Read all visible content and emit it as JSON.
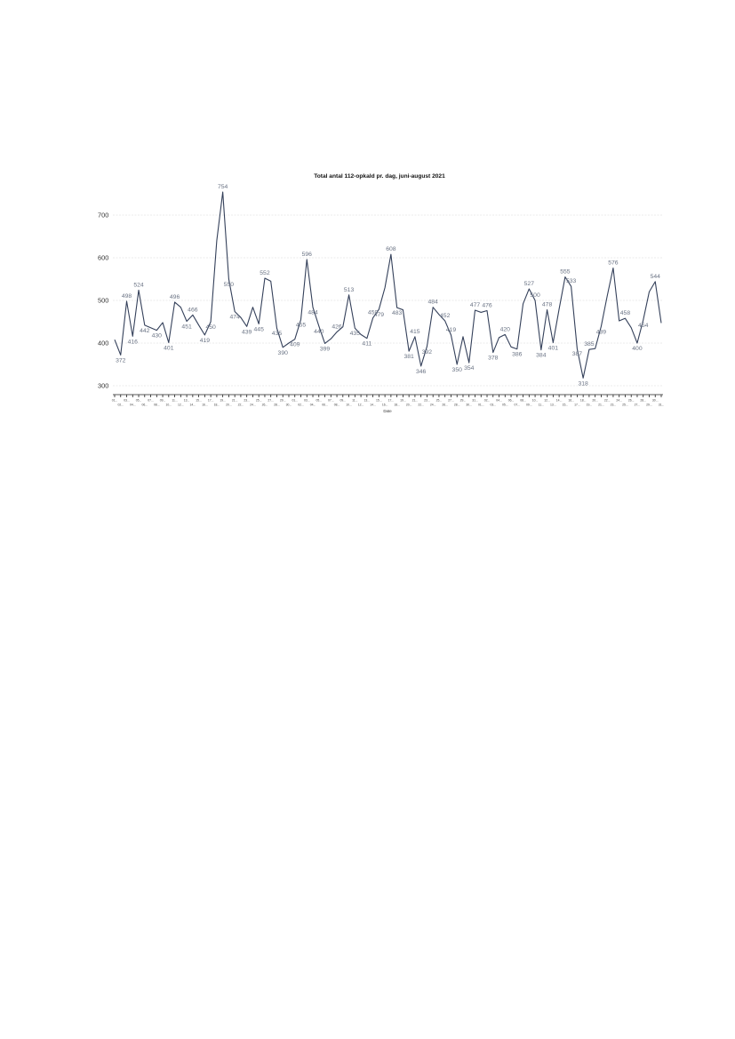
{
  "chart_data": {
    "type": "line",
    "title": "Total antal 112-opkald pr. dag, juni-august 2021",
    "xlabel": "Date",
    "ylabel": "",
    "ylim": [
      300,
      754
    ],
    "yticks": [
      300,
      400,
      500,
      600,
      700
    ],
    "grid": true,
    "x": [
      "01.06.2021",
      "02.06.2021",
      "03.06.2021",
      "04.06.2021",
      "05.06.2021",
      "06.06.2021",
      "07.06.2021",
      "08.06.2021",
      "09.06.2021",
      "10.06.2021",
      "11.06.2021",
      "12.06.2021",
      "13.06.2021",
      "14.06.2021",
      "15.06.2021",
      "16.06.2021",
      "17.06.2021",
      "18.06.2021",
      "19.06.2021",
      "20.06.2021",
      "21.06.2021",
      "22.06.2021",
      "23.06.2021",
      "24.06.2021",
      "25.06.2021",
      "26.06.2021",
      "27.06.2021",
      "28.06.2021",
      "29.06.2021",
      "30.06.2021",
      "01.07.2021",
      "02.07.2021",
      "03.07.2021",
      "04.07.2021",
      "05.07.2021",
      "06.07.2021",
      "07.07.2021",
      "08.07.2021",
      "09.07.2021",
      "10.07.2021",
      "11.07.2021",
      "12.07.2021",
      "13.07.2021",
      "14.07.2021",
      "15.07.2021",
      "16.07.2021",
      "17.07.2021",
      "18.07.2021",
      "19.07.2021",
      "20.07.2021",
      "21.07.2021",
      "22.07.2021",
      "23.07.2021",
      "24.07.2021",
      "25.07.2021",
      "26.07.2021",
      "27.07.2021",
      "28.07.2021",
      "29.07.2021",
      "30.07.2021",
      "31.07.2021",
      "01.08.2021",
      "02.08.2021",
      "03.08.2021",
      "04.08.2021",
      "05.08.2021",
      "06.08.2021",
      "07.08.2021",
      "08.08.2021",
      "09.08.2021",
      "10.08.2021",
      "11.08.2021",
      "12.08.2021",
      "13.08.2021",
      "14.08.2021",
      "15.08.2021",
      "16.08.2021",
      "17.08.2021",
      "18.08.2021",
      "19.08.2021",
      "20.08.2021",
      "21.08.2021",
      "22.08.2021",
      "23.08.2021",
      "24.08.2021",
      "25.08.2021",
      "26.08.2021",
      "27.08.2021",
      "28.08.2021",
      "29.08.2021",
      "30.08.2021",
      "31.08.2021"
    ],
    "tick_labels": [
      "01...",
      "02...",
      "03...",
      "04...",
      "05...",
      "06...",
      "07...",
      "08...",
      "09...",
      "10...",
      "11...",
      "12...",
      "13...",
      "14...",
      "15...",
      "16...",
      "17...",
      "18...",
      "19...",
      "20...",
      "21...",
      "22...",
      "23...",
      "24...",
      "25...",
      "26...",
      "27...",
      "28...",
      "29...",
      "30...",
      "01...",
      "02...",
      "03...",
      "04...",
      "05...",
      "06...",
      "07...",
      "08...",
      "09...",
      "10...",
      "11...",
      "12...",
      "13...",
      "14...",
      "15...",
      "16...",
      "17...",
      "18...",
      "19...",
      "20...",
      "21...",
      "22...",
      "23...",
      "24...",
      "25...",
      "26...",
      "27...",
      "28...",
      "29...",
      "30...",
      "31...",
      "01...",
      "02...",
      "03...",
      "04...",
      "05...",
      "06...",
      "07...",
      "08...",
      "09...",
      "10...",
      "11...",
      "12...",
      "13...",
      "14...",
      "15...",
      "16...",
      "17...",
      "18...",
      "19...",
      "20...",
      "21...",
      "22...",
      "23...",
      "24...",
      "25...",
      "26...",
      "27...",
      "28...",
      "29...",
      "30...",
      "31..."
    ],
    "series": [
      {
        "values": [
          408,
          372,
          498,
          416,
          524,
          442,
          436,
          430,
          448,
          401,
          496,
          484,
          451,
          466,
          442,
          419,
          450,
          640,
          754,
          550,
          474,
          460,
          439,
          484,
          445,
          552,
          545,
          435,
          390,
          400,
          409,
          455,
          596,
          484,
          440,
          399,
          410,
          426,
          438,
          513,
          435,
          420,
          411,
          459,
          479,
          530,
          608,
          483,
          478,
          381,
          415,
          346,
          392,
          484,
          467,
          452,
          419,
          350,
          415,
          354,
          477,
          472,
          476,
          378,
          413,
          420,
          391,
          386,
          492,
          527,
          500,
          384,
          478,
          401,
          480,
          555,
          533,
          387,
          318,
          385,
          387,
          439,
          510,
          576,
          452,
          458,
          436,
          400,
          454,
          520,
          544,
          447
        ],
        "labels": [
          "",
          "372",
          "498",
          "416",
          "524",
          "442",
          "",
          "430",
          "",
          "401",
          "496",
          "",
          "451",
          "466",
          "",
          "419",
          "450",
          "",
          "754",
          "550",
          "474",
          "",
          "439",
          "",
          "445",
          "552",
          "",
          "435",
          "390",
          "",
          "409",
          "455",
          "596",
          "484",
          "440",
          "399",
          "",
          "426",
          "",
          "513",
          "435",
          "",
          "411",
          "459",
          "479",
          "",
          "608",
          "483",
          "",
          "381",
          "415",
          "346",
          "392",
          "484",
          "",
          "452",
          "419",
          "350",
          "",
          "354",
          "477",
          "",
          "476",
          "378",
          "",
          "420",
          "",
          "386",
          "",
          "527",
          "500",
          "384",
          "478",
          "401",
          "",
          "555",
          "533",
          "387",
          "318",
          "385",
          "",
          "439",
          "",
          "576",
          "",
          "458",
          "",
          "400",
          "454",
          "",
          "544",
          ""
        ]
      }
    ]
  }
}
